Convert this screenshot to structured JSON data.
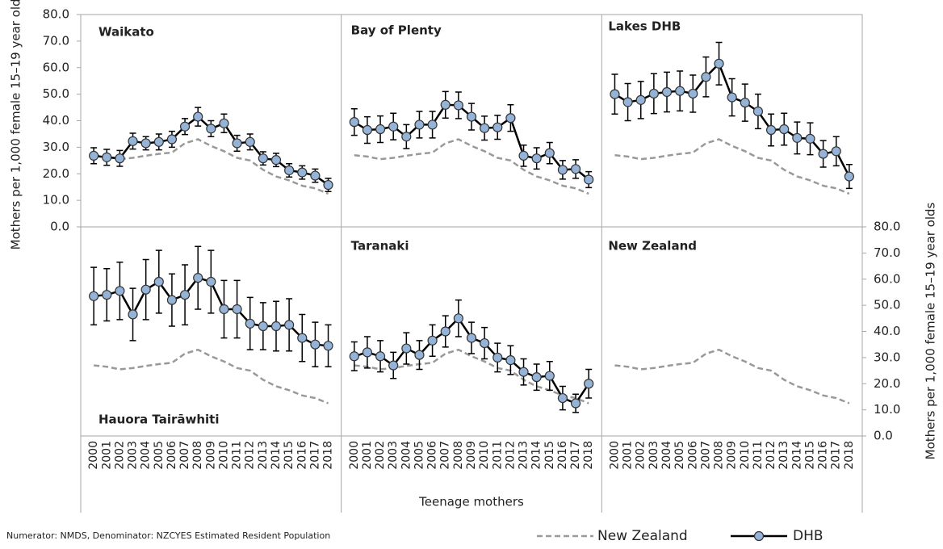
{
  "chart_data": {
    "type": "line",
    "y_title": "Mothers per 1,000 female 15–19 year olds",
    "y2_title": "Mothers per 1,000 female 15–19 year olds",
    "x_title": "Teenage mothers",
    "source": "Numerator: NMDS, Denominator: NZCYES Estimated Resident Population",
    "categories": [
      "2000",
      "2001",
      "2002",
      "2003",
      "2004",
      "2005",
      "2006",
      "2007",
      "2008",
      "2009",
      "2010",
      "2011",
      "2012",
      "2013",
      "2014",
      "2015",
      "2016",
      "2017",
      "2018"
    ],
    "ylim": [
      0,
      80
    ],
    "yticks": [
      {
        "value": 0,
        "label": "0.0"
      },
      {
        "value": 10,
        "label": "10.0"
      },
      {
        "value": 20,
        "label": "20.0"
      },
      {
        "value": 30,
        "label": "30.0"
      },
      {
        "value": 40,
        "label": "40.0"
      },
      {
        "value": 50,
        "label": "50.0"
      },
      {
        "value": 60,
        "label": "60.0"
      },
      {
        "value": 70,
        "label": "70.0"
      },
      {
        "value": 80,
        "label": "80.0"
      }
    ],
    "y2lim": [
      0,
      80
    ],
    "y2ticks": [
      {
        "value": 0,
        "label": "0.0"
      },
      {
        "value": 10,
        "label": "10.0"
      },
      {
        "value": 20,
        "label": "20.0"
      },
      {
        "value": 30,
        "label": "30.0"
      },
      {
        "value": 40,
        "label": "40.0"
      },
      {
        "value": 50,
        "label": "50.0"
      },
      {
        "value": 60,
        "label": "60.0"
      },
      {
        "value": 70,
        "label": "70.0"
      },
      {
        "value": 80,
        "label": "80.0"
      }
    ],
    "series": [
      {
        "name": "New Zealand",
        "color": "#999999",
        "values": [
          27,
          26.5,
          25.5,
          26,
          26.8,
          27.5,
          28,
          31.5,
          33,
          30.5,
          28.5,
          26,
          25,
          21.5,
          19,
          17.5,
          15.5,
          14.5,
          12.5
        ]
      },
      {
        "name": "DHB",
        "color": "#000000",
        "marker_color": "#95b3d7"
      }
    ],
    "panels": [
      {
        "title": "Waikato",
        "axis": "y",
        "values": [
          26.8,
          26.2,
          25.8,
          32.3,
          31.5,
          32,
          33,
          37.8,
          41.5,
          37,
          39,
          31.5,
          32,
          25.8,
          25.2,
          21.3,
          20.5,
          19.3,
          15.8
        ],
        "errors": [
          3,
          3,
          3,
          3,
          2.5,
          3,
          3,
          3,
          3.5,
          3,
          3.5,
          3,
          3,
          2.5,
          2.5,
          2.5,
          2.5,
          2.5,
          2.5
        ]
      },
      {
        "title": "Bay of Plenty",
        "axis": "y",
        "values": [
          39.5,
          36.5,
          36.8,
          37.8,
          34,
          38.5,
          38.5,
          46,
          45.8,
          41.5,
          37.2,
          37.5,
          41,
          26.8,
          25.8,
          27.8,
          21.5,
          21.8,
          17.8
        ],
        "errors": [
          5,
          5,
          5,
          5,
          4.5,
          5,
          5,
          5,
          5,
          5,
          4.5,
          4.5,
          5,
          4,
          4,
          4,
          3.5,
          3.5,
          3
        ]
      },
      {
        "title": "Lakes DHB",
        "axis": "y",
        "values": [
          50,
          47,
          47.8,
          50.2,
          50.8,
          51.2,
          50.2,
          56.5,
          61.5,
          48.8,
          46.8,
          43.5,
          36.5,
          36.8,
          33.5,
          33.2,
          27.5,
          28.5,
          19
        ],
        "errors": [
          7.5,
          7,
          7,
          7.5,
          7.5,
          7.5,
          7,
          7.5,
          8,
          7,
          7,
          6.5,
          6,
          6,
          6,
          6,
          5,
          5.5,
          4.5
        ]
      },
      {
        "title": "Hauora Tairāwhiti",
        "axis": "y2",
        "values": [
          53.5,
          54,
          55.5,
          46.5,
          56,
          59,
          52,
          54,
          60.5,
          59,
          48.5,
          48.5,
          43,
          42,
          42,
          42.5,
          37.5,
          35,
          34.5
        ],
        "errors": [
          11,
          10,
          11,
          10,
          11.5,
          12,
          10,
          11.5,
          12,
          12,
          11,
          11,
          10,
          9,
          9.5,
          10,
          9,
          8.5,
          8
        ]
      },
      {
        "title": "Taranaki",
        "axis": "y2",
        "values": [
          30.5,
          32,
          30.5,
          27,
          33.5,
          31,
          36.5,
          40,
          45,
          37.5,
          35.5,
          30,
          29,
          24.5,
          22.5,
          23,
          14.5,
          12.5,
          20
        ],
        "errors": [
          5.5,
          6,
          6,
          5,
          6,
          5.5,
          6,
          6,
          7,
          6,
          6,
          5.5,
          5.5,
          5,
          5,
          5.5,
          4.5,
          3.5,
          5.5
        ]
      },
      {
        "title": "New Zealand",
        "axis": "y2"
      }
    ]
  }
}
